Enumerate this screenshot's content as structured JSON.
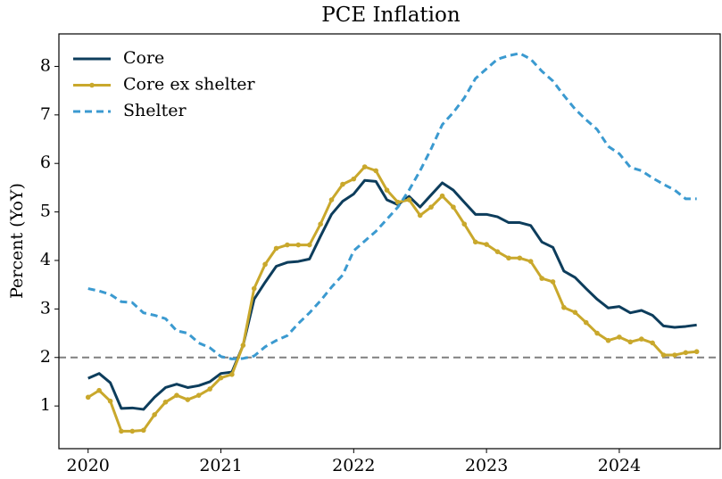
{
  "chart_data": {
    "type": "line",
    "title": "PCE Inflation",
    "ylabel": "Percent (YoY)",
    "x": [
      2020,
      2020.083,
      2020.167,
      2020.25,
      2020.333,
      2020.417,
      2020.5,
      2020.583,
      2020.667,
      2020.75,
      2020.833,
      2020.917,
      2021,
      2021.083,
      2021.167,
      2021.25,
      2021.333,
      2021.417,
      2021.5,
      2021.583,
      2021.667,
      2021.75,
      2021.833,
      2021.917,
      2022,
      2022.083,
      2022.167,
      2022.25,
      2022.333,
      2022.417,
      2022.5,
      2022.583,
      2022.667,
      2022.75,
      2022.833,
      2022.917,
      2023,
      2023.083,
      2023.167,
      2023.25,
      2023.333,
      2023.417,
      2023.5,
      2023.583,
      2023.667,
      2023.75,
      2023.833,
      2023.917,
      2024,
      2024.083,
      2024.167,
      2024.25,
      2024.333,
      2024.417,
      2024.5,
      2024.583
    ],
    "series": [
      {
        "name": "Core",
        "color": "#0d3d5c",
        "linestyle": "solid",
        "markers": false,
        "values": [
          1.57,
          1.67,
          1.48,
          0.95,
          0.96,
          0.93,
          1.18,
          1.38,
          1.45,
          1.38,
          1.42,
          1.5,
          1.67,
          1.7,
          2.25,
          3.2,
          3.55,
          3.88,
          3.96,
          3.98,
          4.03,
          4.5,
          4.95,
          5.22,
          5.37,
          5.65,
          5.63,
          5.25,
          5.15,
          5.32,
          5.1,
          5.35,
          5.6,
          5.45,
          5.2,
          4.95,
          4.95,
          4.9,
          4.78,
          4.78,
          4.72,
          4.38,
          4.27,
          3.78,
          3.65,
          3.42,
          3.2,
          3.02,
          3.05,
          2.92,
          2.97,
          2.87,
          2.65,
          2.62,
          2.64,
          2.67
        ]
      },
      {
        "name": "Core ex shelter",
        "color": "#c9a82c",
        "linestyle": "solid",
        "markers": true,
        "values": [
          1.18,
          1.32,
          1.1,
          0.48,
          0.48,
          0.5,
          0.82,
          1.08,
          1.22,
          1.13,
          1.22,
          1.35,
          1.58,
          1.65,
          2.25,
          3.42,
          3.92,
          4.25,
          4.32,
          4.32,
          4.32,
          4.75,
          5.25,
          5.57,
          5.68,
          5.93,
          5.85,
          5.45,
          5.2,
          5.25,
          4.93,
          5.1,
          5.33,
          5.1,
          4.75,
          4.38,
          4.33,
          4.18,
          4.05,
          4.05,
          3.98,
          3.63,
          3.56,
          3.03,
          2.93,
          2.72,
          2.5,
          2.35,
          2.42,
          2.32,
          2.38,
          2.3,
          2.05,
          2.05,
          2.1,
          2.12
        ]
      },
      {
        "name": "Shelter",
        "color": "#3b9ad0",
        "linestyle": "dashed",
        "markers": false,
        "values": [
          3.42,
          3.37,
          3.3,
          3.15,
          3.13,
          2.92,
          2.87,
          2.8,
          2.55,
          2.5,
          2.3,
          2.2,
          2.02,
          1.97,
          1.98,
          2.03,
          2.22,
          2.35,
          2.45,
          2.7,
          2.92,
          3.17,
          3.45,
          3.7,
          4.2,
          4.4,
          4.6,
          4.85,
          5.1,
          5.45,
          5.85,
          6.3,
          6.8,
          7.05,
          7.35,
          7.75,
          7.95,
          8.15,
          8.22,
          8.27,
          8.15,
          7.9,
          7.7,
          7.4,
          7.12,
          6.9,
          6.7,
          6.35,
          6.2,
          5.92,
          5.85,
          5.7,
          5.57,
          5.45,
          5.27,
          5.27
        ]
      }
    ],
    "hline": {
      "value": 2,
      "color": "#808080",
      "linestyle": "dashed"
    },
    "xlim": [
      2019.78,
      2024.76
    ],
    "xticks": [
      2020,
      2021,
      2022,
      2023,
      2024
    ],
    "ylim": [
      0.12,
      8.67
    ],
    "yticks": [
      1,
      2,
      3,
      4,
      5,
      6,
      7,
      8
    ],
    "grid": false,
    "legend": "upper left"
  }
}
